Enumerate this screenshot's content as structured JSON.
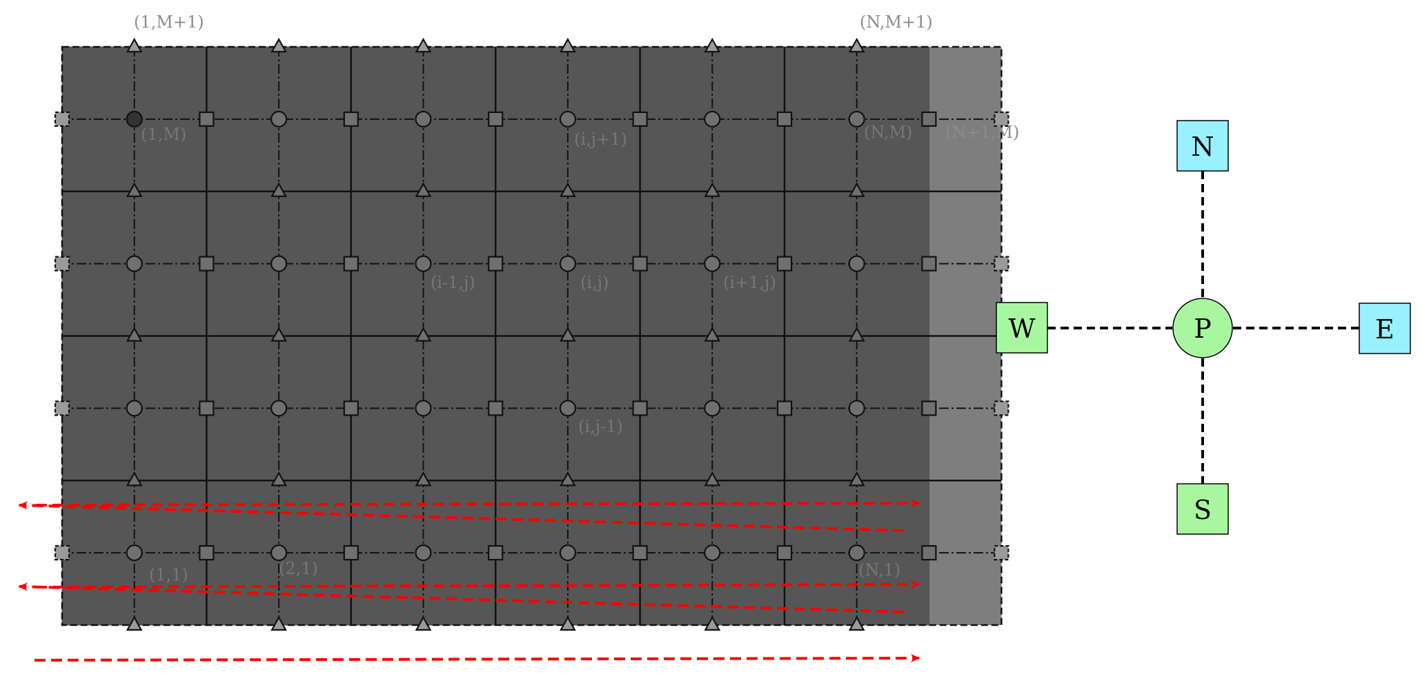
{
  "grid": {
    "columns": 6,
    "rows": 4,
    "colors": {
      "cell_fill": "#565656",
      "cell_edge": "#4e4e4e",
      "boundary_fill": "#7e7e7e",
      "line": "#111111",
      "marker_fill": "#707070",
      "ghost_marker_fill": "#9a9a9a",
      "arrow": "#ff0000"
    },
    "labels": [
      {
        "text": "(1,M+1)",
        "style": "outside"
      },
      {
        "text": "(N,M+1)",
        "style": "outside"
      },
      {
        "text": "(1,M)",
        "style": "inside"
      },
      {
        "text": "(i,j+1)",
        "style": "inside"
      },
      {
        "text": "(N,M)",
        "style": "inside"
      },
      {
        "text": "(N+1,M)",
        "style": "outside"
      },
      {
        "text": "(i-1,j)",
        "style": "inside"
      },
      {
        "text": "(i,j)",
        "style": "inside"
      },
      {
        "text": "(i+1,j)",
        "style": "inside"
      },
      {
        "text": "(i,j-1)",
        "style": "inside"
      },
      {
        "text": "(1,1)",
        "style": "inside"
      },
      {
        "text": "(2,1)",
        "style": "inside"
      },
      {
        "text": "(N,1)",
        "style": "inside"
      }
    ]
  },
  "stencil": {
    "nodes": [
      {
        "id": "north",
        "label": "N",
        "shape": "square",
        "color": "#99f1ff"
      },
      {
        "id": "west",
        "label": "W",
        "shape": "square",
        "color": "#a8f7a0"
      },
      {
        "id": "center",
        "label": "P",
        "shape": "circle",
        "color": "#a8f7a0"
      },
      {
        "id": "east",
        "label": "E",
        "shape": "square",
        "color": "#99f1ff"
      },
      {
        "id": "south",
        "label": "S",
        "shape": "square",
        "color": "#a8f7a0"
      }
    ]
  }
}
